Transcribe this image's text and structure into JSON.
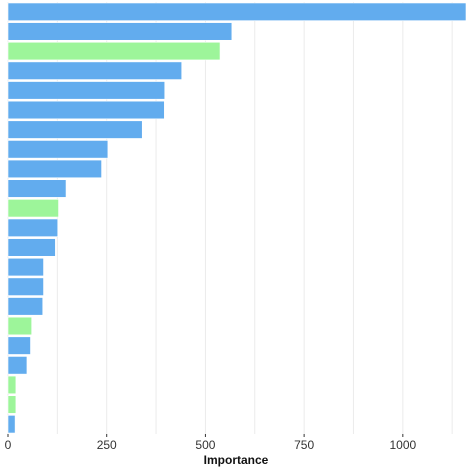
{
  "chart_data": {
    "type": "bar",
    "orientation": "horizontal",
    "title": "",
    "xlabel": "Importance",
    "ylabel": "",
    "xlim": [
      0,
      1160
    ],
    "x_ticks": [
      0,
      250,
      500,
      750,
      1000
    ],
    "x_tick_labels": [
      "0",
      "250",
      "500",
      "750",
      "1000"
    ],
    "grid": true,
    "legend": "none",
    "colors": {
      "blue": "#62acee",
      "green": "#9df59a"
    },
    "values": [
      1160,
      567,
      537,
      440,
      397,
      396,
      340,
      253,
      237,
      147,
      128,
      126,
      120,
      90,
      90,
      88,
      60,
      57,
      48,
      20,
      20,
      18
    ],
    "bar_colors": [
      "blue",
      "blue",
      "green",
      "blue",
      "blue",
      "blue",
      "blue",
      "blue",
      "blue",
      "blue",
      "green",
      "blue",
      "blue",
      "blue",
      "blue",
      "blue",
      "green",
      "blue",
      "blue",
      "green",
      "green",
      "blue"
    ]
  }
}
